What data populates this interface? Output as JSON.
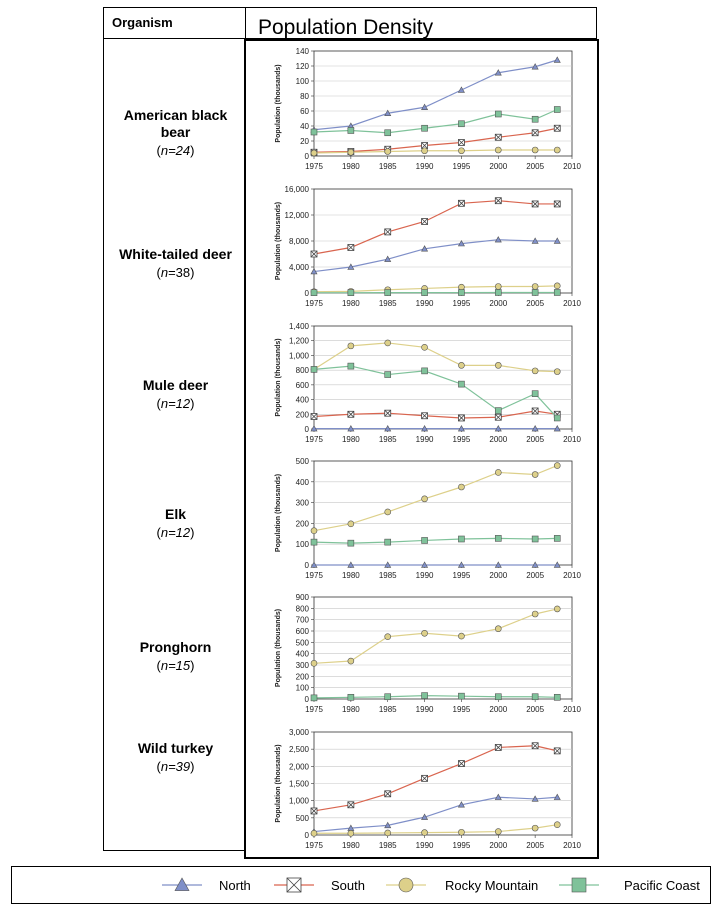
{
  "header": {
    "organism_label": "Organism",
    "title": "Population Density"
  },
  "colors": {
    "North": "#7f8fc8",
    "South": "#d9654f",
    "Rocky Mountain": "#ddd08a",
    "Pacific Coast": "#7fc29a",
    "grid": "#c8c8c8"
  },
  "legend": {
    "items": [
      {
        "name": "North",
        "marker": "triangle"
      },
      {
        "name": "South",
        "marker": "box-x"
      },
      {
        "name": "Rocky Mountain",
        "marker": "circle"
      },
      {
        "name": "Pacific Coast",
        "marker": "square"
      }
    ]
  },
  "organisms": [
    {
      "name": "American black bear",
      "n_prefix": "n",
      "n_suffix": "=24"
    },
    {
      "name": "White-tailed deer",
      "n_prefix": "n",
      "n_suffix": "=38"
    },
    {
      "name": "Mule deer",
      "n_prefix": "n",
      "n_suffix": "=12"
    },
    {
      "name": "Elk",
      "n_prefix": "n",
      "n_suffix": "=12"
    },
    {
      "name": "Pronghorn",
      "n_prefix": "n",
      "n_suffix": "=15"
    },
    {
      "name": "Wild turkey",
      "n_prefix": "n",
      "n_suffix": "=39"
    }
  ],
  "chart_data": [
    {
      "type": "line",
      "organism": "American black bear",
      "ylabel": "Population (thousands)",
      "x": [
        1975,
        1980,
        1985,
        1990,
        1995,
        2000,
        2005,
        2008
      ],
      "xticks": [
        "1975",
        "1980",
        "1985",
        "1990",
        "1995",
        "2000",
        "2005",
        "2010"
      ],
      "xlim": [
        1975,
        2010
      ],
      "ylim": [
        0,
        140
      ],
      "yticks": [
        "0",
        "20",
        "40",
        "60",
        "80",
        "100",
        "120",
        "140"
      ],
      "grid": true,
      "series": [
        {
          "name": "North",
          "values": [
            35,
            40,
            57,
            65,
            88,
            111,
            119,
            128
          ]
        },
        {
          "name": "South",
          "values": [
            5,
            6,
            9,
            14,
            18,
            25,
            31,
            37
          ]
        },
        {
          "name": "Rocky Mountain",
          "values": [
            4,
            5,
            6,
            7,
            7,
            8,
            8,
            8
          ]
        },
        {
          "name": "Pacific Coast",
          "values": [
            32,
            34,
            31,
            37,
            43,
            56,
            49,
            62
          ]
        }
      ]
    },
    {
      "type": "line",
      "organism": "White-tailed deer",
      "ylabel": "Population (thousands)",
      "x": [
        1975,
        1980,
        1985,
        1990,
        1995,
        2000,
        2005,
        2008
      ],
      "xticks": [
        "1975",
        "1980",
        "1985",
        "1990",
        "1995",
        "2000",
        "2005",
        "2010"
      ],
      "xlim": [
        1975,
        2010
      ],
      "ylim": [
        0,
        16000
      ],
      "yticks": [
        "0",
        "4,000",
        "8,000",
        "12,000",
        "16,000"
      ],
      "grid": true,
      "series": [
        {
          "name": "North",
          "values": [
            3300,
            4000,
            5200,
            6800,
            7600,
            8200,
            8000,
            8000
          ]
        },
        {
          "name": "South",
          "values": [
            6000,
            7000,
            9400,
            11000,
            13800,
            14200,
            13700,
            13700
          ]
        },
        {
          "name": "Rocky Mountain",
          "values": [
            200,
            250,
            500,
            700,
            900,
            1000,
            1000,
            1100
          ]
        },
        {
          "name": "Pacific Coast",
          "values": [
            50,
            50,
            60,
            60,
            70,
            80,
            80,
            80
          ]
        }
      ]
    },
    {
      "type": "line",
      "organism": "Mule deer",
      "ylabel": "Population (thousands)",
      "x": [
        1975,
        1980,
        1985,
        1990,
        1995,
        2000,
        2005,
        2008
      ],
      "xticks": [
        "1975",
        "1980",
        "1985",
        "1990",
        "1995",
        "2000",
        "2005",
        "2010"
      ],
      "xlim": [
        1975,
        2010
      ],
      "ylim": [
        0,
        1400
      ],
      "yticks": [
        "0",
        "200",
        "400",
        "600",
        "800",
        "1,000",
        "1,200",
        "1,400"
      ],
      "grid": true,
      "series": [
        {
          "name": "North",
          "values": [
            5,
            5,
            5,
            5,
            5,
            5,
            5,
            5
          ]
        },
        {
          "name": "South",
          "values": [
            170,
            200,
            215,
            180,
            150,
            160,
            245,
            200
          ]
        },
        {
          "name": "Rocky Mountain",
          "values": [
            810,
            1130,
            1170,
            1110,
            865,
            865,
            790,
            780
          ]
        },
        {
          "name": "Pacific Coast",
          "values": [
            810,
            855,
            740,
            790,
            610,
            250,
            480,
            150
          ]
        }
      ]
    },
    {
      "type": "line",
      "organism": "Elk",
      "ylabel": "Population (thousands)",
      "x": [
        1975,
        1980,
        1985,
        1990,
        1995,
        2000,
        2005,
        2008
      ],
      "xticks": [
        "1975",
        "1980",
        "1985",
        "1990",
        "1995",
        "2000",
        "2005",
        "2010"
      ],
      "xlim": [
        1975,
        2010
      ],
      "ylim": [
        0,
        500
      ],
      "yticks": [
        "0",
        "100",
        "200",
        "300",
        "400",
        "500"
      ],
      "grid": true,
      "series": [
        {
          "name": "North",
          "values": [
            0,
            0,
            0,
            0,
            0,
            0,
            0,
            0
          ]
        },
        {
          "name": "Rocky Mountain",
          "values": [
            165,
            198,
            255,
            318,
            375,
            445,
            435,
            478
          ]
        },
        {
          "name": "Pacific Coast",
          "values": [
            110,
            105,
            110,
            118,
            125,
            128,
            125,
            128
          ]
        }
      ]
    },
    {
      "type": "line",
      "organism": "Pronghorn",
      "ylabel": "Population (thousands)",
      "x": [
        1975,
        1980,
        1985,
        1990,
        1995,
        2000,
        2005,
        2008
      ],
      "xticks": [
        "1975",
        "1980",
        "1985",
        "1990",
        "1995",
        "2000",
        "2005",
        "2010"
      ],
      "xlim": [
        1975,
        2010
      ],
      "ylim": [
        0,
        900
      ],
      "yticks": [
        "0",
        "100",
        "200",
        "300",
        "400",
        "500",
        "600",
        "700",
        "800",
        "900"
      ],
      "grid": true,
      "series": [
        {
          "name": "Rocky Mountain",
          "values": [
            315,
            335,
            550,
            580,
            555,
            620,
            750,
            795
          ]
        },
        {
          "name": "Pacific Coast",
          "values": [
            10,
            15,
            20,
            30,
            25,
            20,
            20,
            15
          ]
        }
      ]
    },
    {
      "type": "line",
      "organism": "Wild turkey",
      "ylabel": "Population (thousands)",
      "x": [
        1975,
        1980,
        1985,
        1990,
        1995,
        2000,
        2005,
        2008
      ],
      "xticks": [
        "1975",
        "1980",
        "1985",
        "1990",
        "1995",
        "2000",
        "2005",
        "2010"
      ],
      "xlim": [
        1975,
        2010
      ],
      "ylim": [
        0,
        3000
      ],
      "yticks": [
        "0",
        "500",
        "1,000",
        "1,500",
        "2,000",
        "2,500",
        "3,000"
      ],
      "grid": true,
      "series": [
        {
          "name": "North",
          "values": [
            100,
            200,
            280,
            520,
            880,
            1100,
            1050,
            1100
          ]
        },
        {
          "name": "South",
          "values": [
            700,
            880,
            1200,
            1650,
            2080,
            2550,
            2600,
            2450
          ]
        },
        {
          "name": "Rocky Mountain",
          "values": [
            50,
            50,
            60,
            70,
            80,
            100,
            200,
            300
          ]
        }
      ]
    }
  ]
}
